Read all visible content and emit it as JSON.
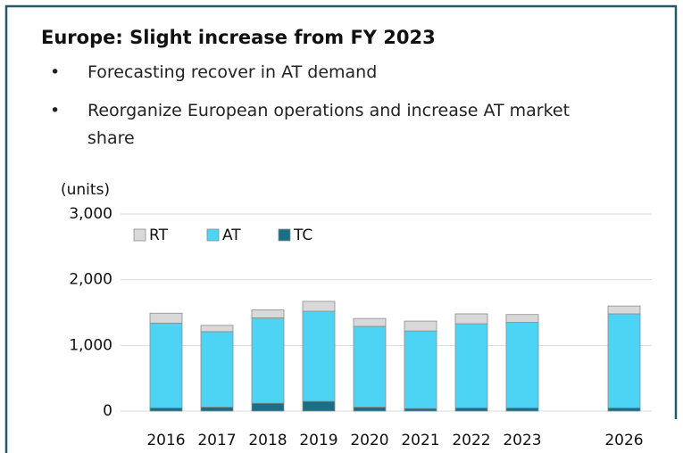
{
  "heading": "Europe: Slight increase from FY 2023",
  "bullets": [
    "Forecasting recover in AT demand",
    "Reorganize European operations and increase AT market share"
  ],
  "chart_data": {
    "type": "stacked_bar",
    "y_label": "(units)",
    "categories": [
      "2016",
      "2017",
      "2018",
      "2019",
      "2020",
      "2021",
      "2022",
      "2023",
      null,
      "2026"
    ],
    "series": [
      {
        "name": "RT",
        "color": "#d9d9d9",
        "values": [
          150,
          95,
          120,
          150,
          120,
          150,
          150,
          120,
          null,
          120
        ]
      },
      {
        "name": "AT",
        "color": "#4dd4f5",
        "values": [
          1290,
          1150,
          1300,
          1370,
          1230,
          1180,
          1280,
          1300,
          null,
          1430
        ]
      },
      {
        "name": "TC",
        "color": "#1a6e85",
        "values": [
          50,
          60,
          120,
          150,
          60,
          40,
          50,
          50,
          null,
          50
        ]
      }
    ],
    "ylim": [
      0,
      3000
    ],
    "yticks": [
      0,
      {
        "value": 1000,
        "label": "1,000"
      },
      {
        "value": 2000,
        "label": "2,000"
      },
      {
        "value": 3000,
        "label": "3,000"
      }
    ],
    "grid": true,
    "legend": "top-left"
  }
}
